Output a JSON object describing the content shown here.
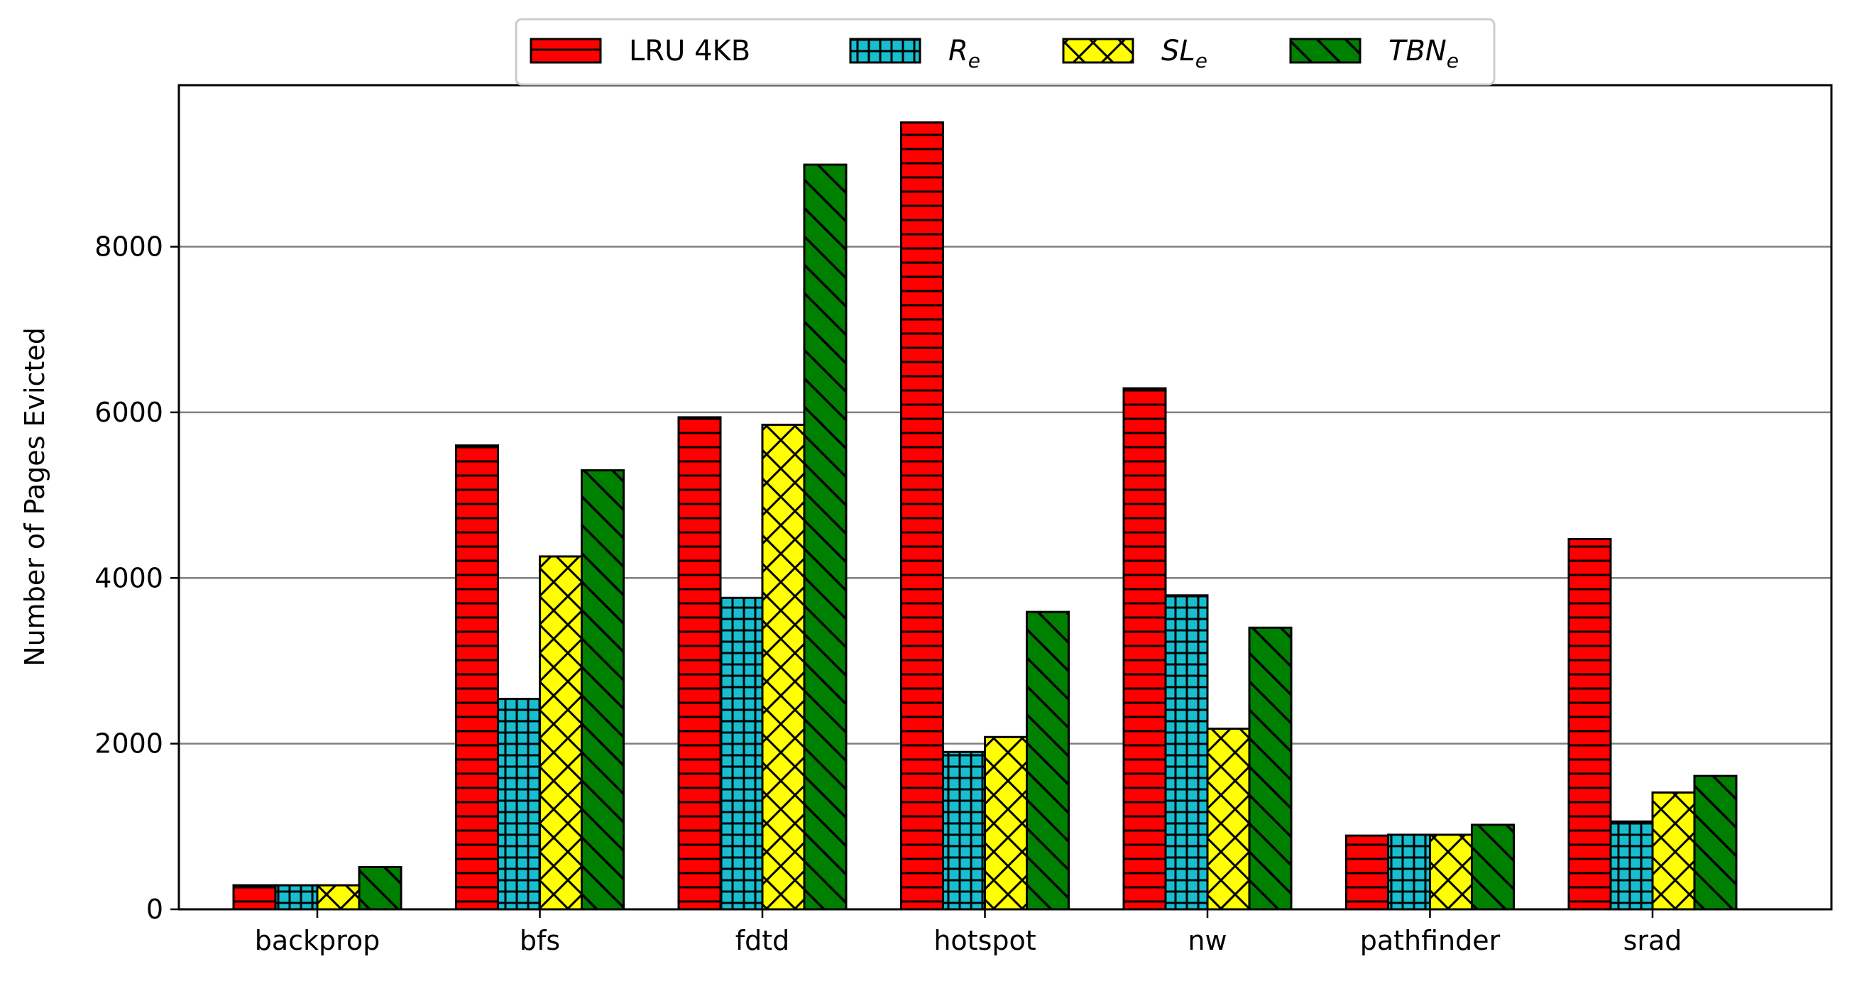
{
  "chart_data": {
    "type": "bar",
    "title": "",
    "xlabel": "",
    "ylabel": "Number of Pages Evicted",
    "ylim": [
      0,
      9950
    ],
    "yticks": [
      0,
      2000,
      4000,
      6000,
      8000
    ],
    "grid": "horizontal",
    "legend_placement": "top-center",
    "categories": [
      "backprop",
      "bfs",
      "fdtd",
      "hotspot",
      "nw",
      "pathfinder",
      "srad"
    ],
    "series": [
      {
        "name": "LRU 4KB",
        "name_base": "LRU 4KB",
        "name_sub": "",
        "name_italic": false,
        "color": "#ff0000",
        "hatch": "horizontal",
        "values": [
          290,
          5600,
          5940,
          9500,
          6290,
          890,
          4470
        ]
      },
      {
        "name": "R_e",
        "name_base": "R",
        "name_sub": "e",
        "name_italic": true,
        "color": "#17becf",
        "hatch": "grid",
        "values": [
          290,
          2540,
          3760,
          1900,
          3790,
          900,
          1060
        ]
      },
      {
        "name": "SL_e",
        "name_base": "SL",
        "name_sub": "e",
        "name_italic": true,
        "color": "#ffff00",
        "hatch": "crosshatch",
        "values": [
          290,
          4260,
          5850,
          2080,
          2180,
          900,
          1410
        ]
      },
      {
        "name": "TBN_e",
        "name_base": "TBN",
        "name_sub": "e",
        "name_italic": true,
        "color": "#008000",
        "hatch": "backslash",
        "values": [
          510,
          5300,
          8990,
          3590,
          3400,
          1020,
          1610
        ]
      }
    ]
  }
}
